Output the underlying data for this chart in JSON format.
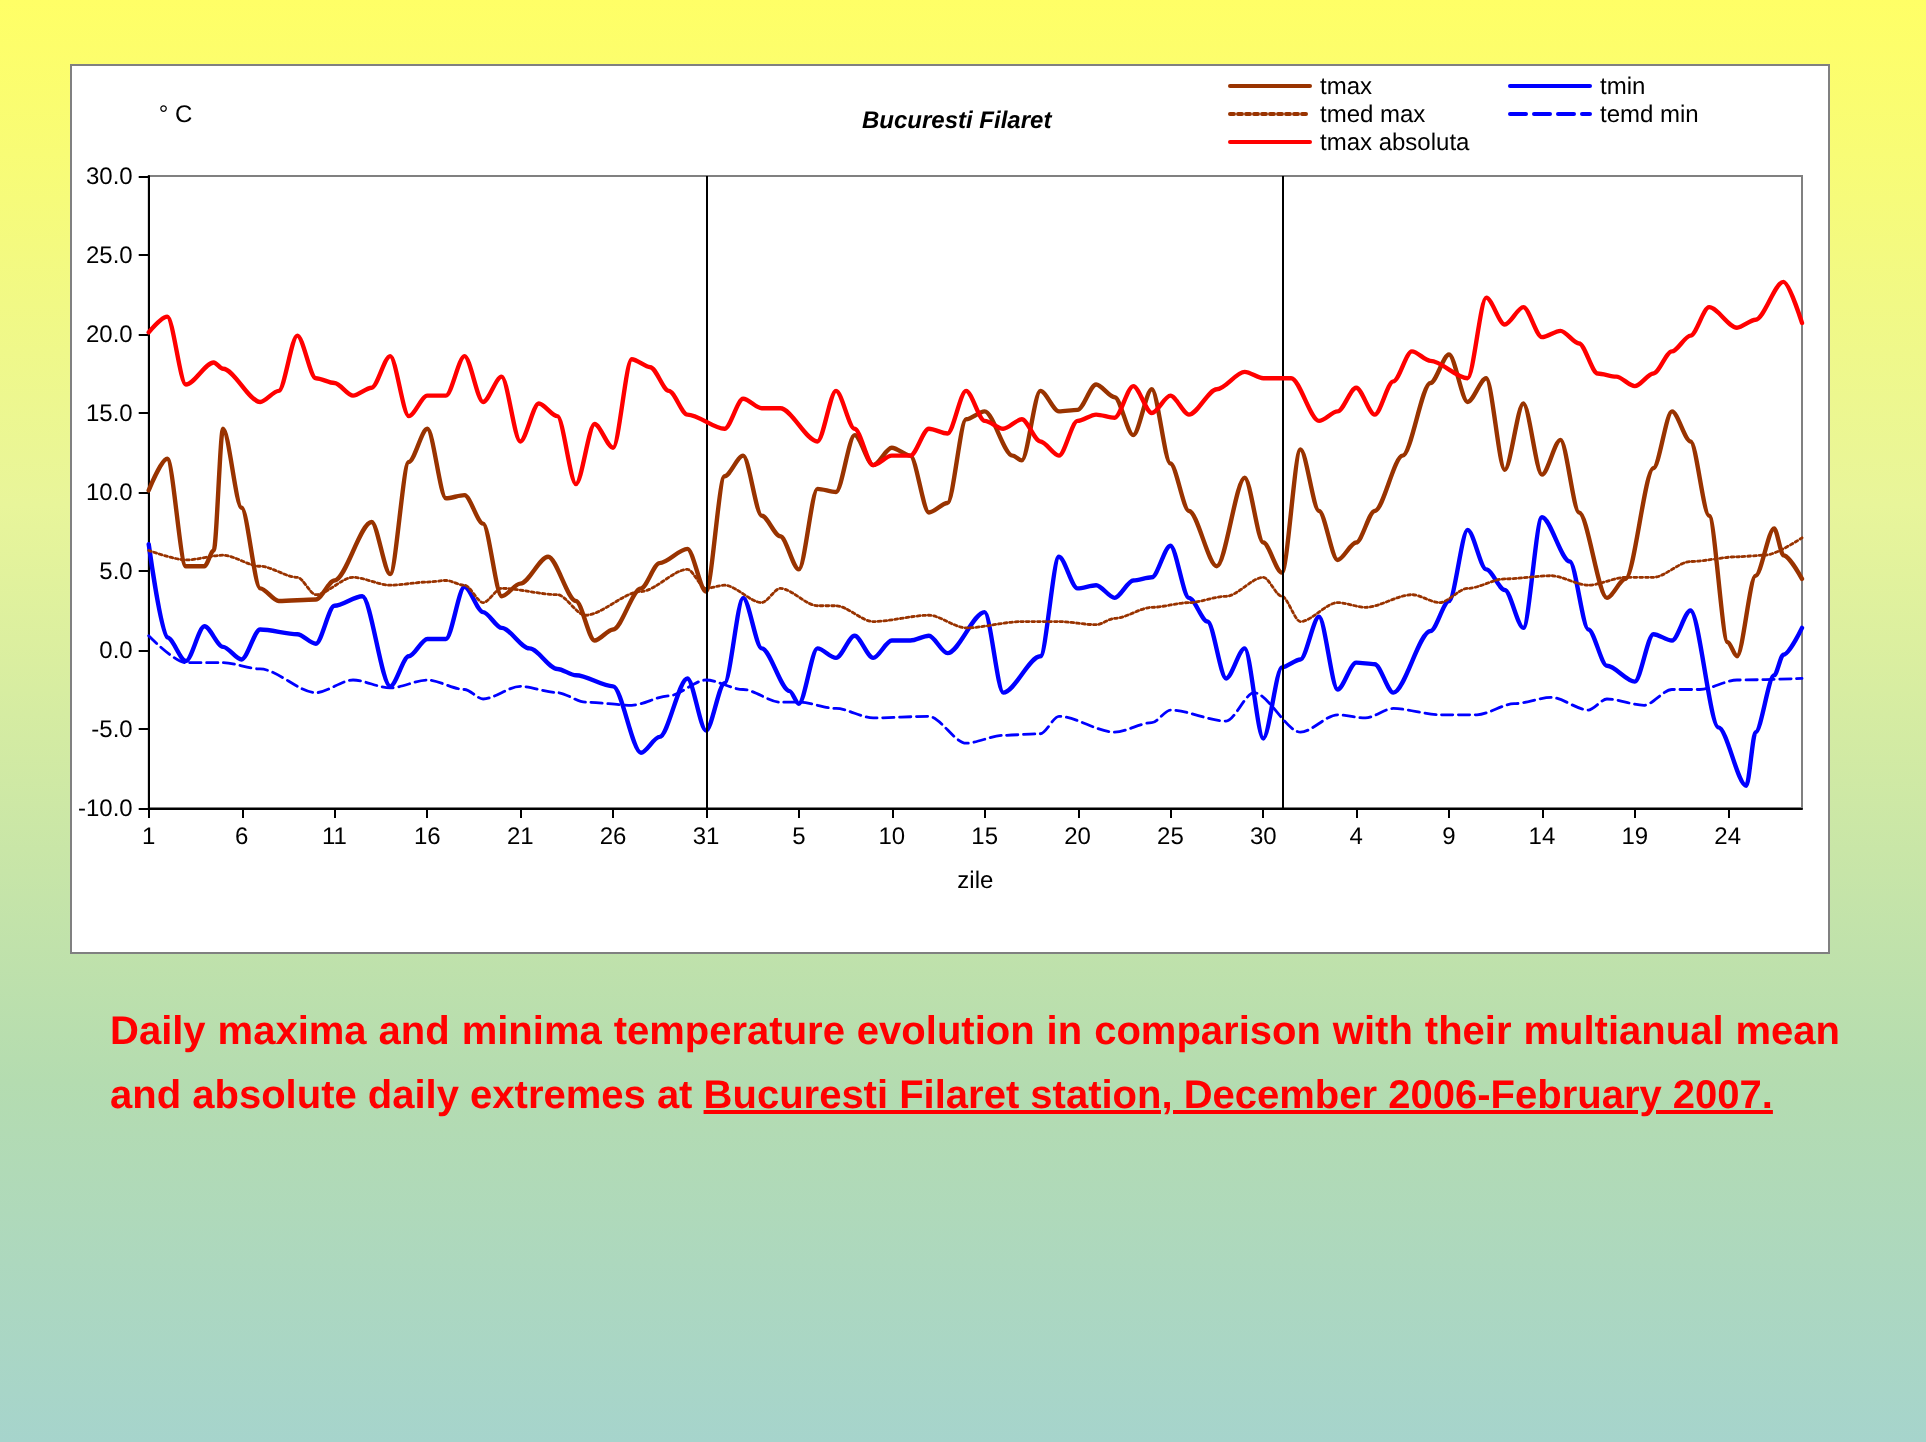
{
  "chart_data": {
    "type": "line",
    "title": "Bucuresti Filaret",
    "ylabel": "° C",
    "xlabel": "zile",
    "xlim": [
      "2006-12-01",
      "2007-02-28"
    ],
    "xticks": [
      {
        "value": "2006-12-01",
        "label": "1"
      },
      {
        "value": "2006-12-06",
        "label": "6"
      },
      {
        "value": "2006-12-11",
        "label": "11"
      },
      {
        "value": "2006-12-16",
        "label": "16"
      },
      {
        "value": "2006-12-21",
        "label": "21"
      },
      {
        "value": "2006-12-26",
        "label": "26"
      },
      {
        "value": "2006-12-31",
        "label": "31"
      },
      {
        "value": "2007-01-05",
        "label": "5"
      },
      {
        "value": "2007-01-10",
        "label": "10"
      },
      {
        "value": "2007-01-15",
        "label": "15"
      },
      {
        "value": "2007-01-20",
        "label": "20"
      },
      {
        "value": "2007-01-25",
        "label": "25"
      },
      {
        "value": "2007-01-30",
        "label": "30"
      },
      {
        "value": "2007-02-04",
        "label": "4"
      },
      {
        "value": "2007-02-09",
        "label": "9"
      },
      {
        "value": "2007-02-14",
        "label": "14"
      },
      {
        "value": "2007-02-19",
        "label": "19"
      },
      {
        "value": "2007-02-24",
        "label": "24"
      }
    ],
    "ylim": [
      -10,
      30
    ],
    "yticks": [
      {
        "value": -10,
        "label": "-10.0"
      },
      {
        "value": -5,
        "label": "-5.0"
      },
      {
        "value": 0,
        "label": "0.0"
      },
      {
        "value": 5,
        "label": "5.0"
      },
      {
        "value": 10,
        "label": "10.0"
      },
      {
        "value": 15,
        "label": "15.0"
      },
      {
        "value": 20,
        "label": "20.0"
      },
      {
        "value": 25,
        "label": "25.0"
      },
      {
        "value": 30,
        "label": "30.0"
      }
    ],
    "grid": false,
    "legend": "top right",
    "marker": "none",
    "ref_lines": [
      {
        "axis": "x",
        "value": "2006-12-31",
        "color": "#000000"
      },
      {
        "axis": "x",
        "value": "2007-01-31",
        "color": "#000000"
      }
    ],
    "annotations": [
      "Daily maxima and minima temperature evolution  in comparison with their multianual mean and absolute daily extremes at ",
      "Bucuresti Filaret station, December 2006-February 2007."
    ],
    "series": [
      {
        "name": "tmax",
        "color": "#993300",
        "line_style": "solid",
        "x": [
          "2006-12-01",
          "2006-12-02",
          "2006-12-03",
          "2006-12-04",
          "2006-12-04T12:00",
          "2006-12-05",
          "2006-12-06",
          "2006-12-07",
          "2006-12-08",
          "2006-12-10",
          "2006-12-11",
          "2006-12-13",
          "2006-12-14",
          "2006-12-15",
          "2006-12-16",
          "2006-12-17",
          "2006-12-18",
          "2006-12-19",
          "2006-12-20",
          "2006-12-21",
          "2006-12-22T12:00",
          "2006-12-24",
          "2006-12-25",
          "2006-12-26",
          "2006-12-27T12:00",
          "2006-12-28T12:00",
          "2006-12-30",
          "2006-12-31",
          "2007-01-01",
          "2007-01-02",
          "2007-01-03",
          "2007-01-04",
          "2007-01-05",
          "2007-01-06",
          "2007-01-07",
          "2007-01-08",
          "2007-01-09",
          "2007-01-10",
          "2007-01-11",
          "2007-01-12",
          "2007-01-13",
          "2007-01-14",
          "2007-01-15",
          "2007-01-16T12:00",
          "2007-01-17",
          "2007-01-18",
          "2007-01-19",
          "2007-01-20",
          "2007-01-21",
          "2007-01-22",
          "2007-01-23",
          "2007-01-24",
          "2007-01-25",
          "2007-01-26",
          "2007-01-27T12:00",
          "2007-01-29",
          "2007-01-30",
          "2007-01-31",
          "2007-02-01",
          "2007-02-02",
          "2007-02-03",
          "2007-02-04",
          "2007-02-05",
          "2007-02-06T12:00",
          "2007-02-08",
          "2007-02-09",
          "2007-02-10",
          "2007-02-11",
          "2007-02-12",
          "2007-02-13",
          "2007-02-14",
          "2007-02-15",
          "2007-02-16",
          "2007-02-17T12:00",
          "2007-02-18T12:00",
          "2007-02-20",
          "2007-02-21",
          "2007-02-22",
          "2007-02-23",
          "2007-02-24",
          "2007-02-24T12:00",
          "2007-02-25T12:00",
          "2007-02-26T12:00",
          "2007-02-27",
          "2007-02-28"
        ],
        "values": [
          10.1,
          12.1,
          5.3,
          5.3,
          6.3,
          14.0,
          9.0,
          3.9,
          3.1,
          3.2,
          4.4,
          8.1,
          4.8,
          11.9,
          14.0,
          9.6,
          9.8,
          8.0,
          3.4,
          4.2,
          5.9,
          3.1,
          0.6,
          1.3,
          3.9,
          5.5,
          6.4,
          3.7,
          11.0,
          12.3,
          8.5,
          7.2,
          5.1,
          10.2,
          10.0,
          13.6,
          11.7,
          12.8,
          12.3,
          8.7,
          9.3,
          14.6,
          15.1,
          12.3,
          12.0,
          16.4,
          15.1,
          15.2,
          16.8,
          16.0,
          13.6,
          16.5,
          11.8,
          8.8,
          5.3,
          10.9,
          6.8,
          4.9,
          12.7,
          8.8,
          5.7,
          6.8,
          8.8,
          12.3,
          16.9,
          18.7,
          15.7,
          17.2,
          11.4,
          15.6,
          11.1,
          13.3,
          8.7,
          3.3,
          4.5,
          11.5,
          15.1,
          13.2,
          8.5,
          0.5,
          -0.4,
          4.7,
          7.7,
          6.0,
          4.5
        ]
      },
      {
        "name": "tmin",
        "color": "#0000ff",
        "line_style": "solid",
        "x": [
          "2006-12-01",
          "2006-12-02",
          "2006-12-03",
          "2006-12-04",
          "2006-12-05",
          "2006-12-06",
          "2006-12-07",
          "2006-12-09",
          "2006-12-10",
          "2006-12-11",
          "2006-12-12T12:00",
          "2006-12-14",
          "2006-12-15",
          "2006-12-16",
          "2006-12-17",
          "2006-12-18",
          "2006-12-19",
          "2006-12-20",
          "2006-12-21T12:00",
          "2006-12-23",
          "2006-12-24",
          "2006-12-26",
          "2006-12-27T12:00",
          "2006-12-28T12:00",
          "2006-12-30",
          "2006-12-31",
          "2007-01-01",
          "2007-01-02",
          "2007-01-03",
          "2007-01-04T12:00",
          "2007-01-05",
          "2007-01-06",
          "2007-01-07",
          "2007-01-08",
          "2007-01-09",
          "2007-01-10",
          "2007-01-11",
          "2007-01-12",
          "2007-01-13",
          "2007-01-15",
          "2007-01-16",
          "2007-01-18",
          "2007-01-19",
          "2007-01-20",
          "2007-01-21",
          "2007-01-22",
          "2007-01-23",
          "2007-01-24",
          "2007-01-25",
          "2007-01-26",
          "2007-01-27",
          "2007-01-28",
          "2007-01-29",
          "2007-01-30",
          "2007-01-31",
          "2007-02-01",
          "2007-02-02",
          "2007-02-03",
          "2007-02-04",
          "2007-02-05",
          "2007-02-06",
          "2007-02-08",
          "2007-02-09",
          "2007-02-10",
          "2007-02-11",
          "2007-02-12",
          "2007-02-13",
          "2007-02-14",
          "2007-02-15T12:00",
          "2007-02-16T12:00",
          "2007-02-17T12:00",
          "2007-02-19",
          "2007-02-20",
          "2007-02-21",
          "2007-02-22",
          "2007-02-23T12:00",
          "2007-02-25",
          "2007-02-25T12:00",
          "2007-02-26T12:00",
          "2007-02-27",
          "2007-02-28"
        ],
        "values": [
          6.7,
          0.8,
          -0.7,
          1.5,
          0.2,
          -0.6,
          1.3,
          1.0,
          0.4,
          2.8,
          3.4,
          -2.3,
          -0.4,
          0.7,
          0.7,
          4.0,
          2.4,
          1.4,
          0.1,
          -1.2,
          -1.6,
          -2.3,
          -6.5,
          -5.5,
          -1.8,
          -5.1,
          -2.1,
          3.3,
          0.1,
          -2.6,
          -3.4,
          0.1,
          -0.5,
          0.9,
          -0.5,
          0.6,
          0.6,
          0.9,
          -0.2,
          2.4,
          -2.7,
          -0.4,
          5.9,
          3.9,
          4.1,
          3.3,
          4.4,
          4.6,
          6.6,
          3.3,
          1.8,
          -1.8,
          0.1,
          -5.6,
          -1.1,
          -0.6,
          2.1,
          -2.5,
          -0.8,
          -0.9,
          -2.7,
          1.2,
          3.1,
          7.6,
          5.1,
          3.8,
          1.4,
          8.4,
          5.6,
          1.3,
          -1.0,
          -2.0,
          1.0,
          0.6,
          2.5,
          -4.9,
          -8.6,
          -5.2,
          -1.6,
          -0.3,
          1.4
        ]
      },
      {
        "name": "tmed max",
        "color": "#993300",
        "line_style": "dotted",
        "x": [
          "2006-12-01",
          "2006-12-03",
          "2006-12-05",
          "2006-12-07",
          "2006-12-09",
          "2006-12-10",
          "2006-12-12",
          "2006-12-14",
          "2006-12-16",
          "2006-12-17",
          "2006-12-18",
          "2006-12-19",
          "2006-12-20",
          "2006-12-23",
          "2006-12-24T12:00",
          "2006-12-27T12:00",
          "2006-12-30",
          "2006-12-31",
          "2007-01-01",
          "2007-01-03",
          "2007-01-04",
          "2007-01-06",
          "2007-01-07",
          "2007-01-09",
          "2007-01-12",
          "2007-01-14",
          "2007-01-17",
          "2007-01-19",
          "2007-01-21",
          "2007-01-22",
          "2007-01-24",
          "2007-01-26",
          "2007-01-28",
          "2007-01-30",
          "2007-01-31",
          "2007-02-01",
          "2007-02-03",
          "2007-02-04T12:00",
          "2007-02-07",
          "2007-02-08T12:00",
          "2007-02-10",
          "2007-02-12",
          "2007-02-14T12:00",
          "2007-02-16T12:00",
          "2007-02-18T12:00",
          "2007-02-20",
          "2007-02-22",
          "2007-02-24T12:00",
          "2007-02-26",
          "2007-02-28"
        ],
        "values": [
          6.3,
          5.7,
          6.0,
          5.3,
          4.6,
          3.5,
          4.6,
          4.1,
          4.3,
          4.4,
          4.1,
          3.0,
          3.9,
          3.5,
          2.2,
          3.7,
          5.1,
          3.9,
          4.1,
          3.0,
          3.9,
          2.8,
          2.8,
          1.8,
          2.2,
          1.4,
          1.8,
          1.8,
          1.6,
          2.0,
          2.7,
          3.0,
          3.4,
          4.6,
          3.4,
          1.8,
          3.0,
          2.7,
          3.5,
          3.0,
          3.9,
          4.5,
          4.7,
          4.1,
          4.6,
          4.6,
          5.6,
          5.9,
          6.0,
          7.1
        ]
      },
      {
        "name": "temd min",
        "color": "#0000ff",
        "line_style": "dashed",
        "x": [
          "2006-12-01",
          "2006-12-03",
          "2006-12-05",
          "2006-12-07",
          "2006-12-10",
          "2006-12-12",
          "2006-12-14",
          "2006-12-16",
          "2006-12-18",
          "2006-12-19",
          "2006-12-21",
          "2006-12-23",
          "2006-12-24T12:00",
          "2006-12-27",
          "2006-12-29",
          "2006-12-31",
          "2007-01-02",
          "2007-01-04",
          "2007-01-05",
          "2007-01-07",
          "2007-01-09",
          "2007-01-12",
          "2007-01-14",
          "2007-01-16",
          "2007-01-18",
          "2007-01-19",
          "2007-01-22",
          "2007-01-24",
          "2007-01-25",
          "2007-01-28",
          "2007-01-29T12:00",
          "2007-02-01",
          "2007-02-03",
          "2007-02-04T12:00",
          "2007-02-06",
          "2007-02-08T12:00",
          "2007-02-10T12:00",
          "2007-02-12T12:00",
          "2007-02-14T12:00",
          "2007-02-16T12:00",
          "2007-02-17T12:00",
          "2007-02-19T12:00",
          "2007-02-21",
          "2007-02-22T12:00",
          "2007-02-24T12:00",
          "2007-02-28"
        ],
        "values": [
          0.9,
          -0.8,
          -0.8,
          -1.2,
          -2.7,
          -1.9,
          -2.4,
          -1.9,
          -2.5,
          -3.1,
          -2.3,
          -2.7,
          -3.3,
          -3.5,
          -2.9,
          -1.9,
          -2.5,
          -3.3,
          -3.3,
          -3.7,
          -4.3,
          -4.2,
          -5.9,
          -5.4,
          -5.3,
          -4.2,
          -5.2,
          -4.6,
          -3.8,
          -4.5,
          -2.7,
          -5.2,
          -4.1,
          -4.3,
          -3.7,
          -4.1,
          -4.1,
          -3.4,
          -3.0,
          -3.8,
          -3.1,
          -3.5,
          -2.5,
          -2.5,
          -1.9,
          -1.8
        ]
      },
      {
        "name": "tmax absoluta",
        "color": "#ff0000",
        "line_style": "solid",
        "x": [
          "2006-12-01",
          "2006-12-02",
          "2006-12-03",
          "2006-12-04T12:00",
          "2006-12-05",
          "2006-12-07",
          "2006-12-08",
          "2006-12-09",
          "2006-12-10",
          "2006-12-11",
          "2006-12-12",
          "2006-12-13",
          "2006-12-14",
          "2006-12-15",
          "2006-12-16",
          "2006-12-17",
          "2006-12-18",
          "2006-12-19",
          "2006-12-20",
          "2006-12-21",
          "2006-12-22",
          "2006-12-23",
          "2006-12-24",
          "2006-12-25",
          "2006-12-26",
          "2006-12-27",
          "2006-12-28",
          "2006-12-29",
          "2006-12-30",
          "2007-01-01",
          "2007-01-02",
          "2007-01-03",
          "2007-01-04",
          "2007-01-06",
          "2007-01-07",
          "2007-01-08",
          "2007-01-09",
          "2007-01-10",
          "2007-01-11",
          "2007-01-12",
          "2007-01-13",
          "2007-01-14",
          "2007-01-15",
          "2007-01-16",
          "2007-01-17",
          "2007-01-18",
          "2007-01-19",
          "2007-01-20",
          "2007-01-21",
          "2007-01-22",
          "2007-01-23",
          "2007-01-24",
          "2007-01-25",
          "2007-01-26",
          "2007-01-27T12:00",
          "2007-01-29",
          "2007-01-30",
          "2007-01-31T12:00",
          "2007-02-02",
          "2007-02-03",
          "2007-02-04",
          "2007-02-05",
          "2007-02-06",
          "2007-02-07",
          "2007-02-08",
          "2007-02-10",
          "2007-02-11",
          "2007-02-12",
          "2007-02-13",
          "2007-02-14",
          "2007-02-15",
          "2007-02-16",
          "2007-02-17",
          "2007-02-18",
          "2007-02-19",
          "2007-02-20",
          "2007-02-21",
          "2007-02-22",
          "2007-02-23",
          "2007-02-24T12:00",
          "2007-02-25T12:00",
          "2007-02-27",
          "2007-02-28"
        ],
        "values": [
          20.1,
          21.1,
          16.8,
          18.2,
          17.8,
          15.7,
          16.4,
          19.9,
          17.2,
          16.9,
          16.1,
          16.6,
          18.6,
          14.8,
          16.1,
          16.1,
          18.6,
          15.7,
          17.3,
          13.2,
          15.6,
          14.8,
          10.5,
          14.3,
          12.8,
          18.4,
          17.9,
          16.4,
          14.9,
          14.0,
          15.9,
          15.3,
          15.3,
          13.2,
          16.4,
          14.0,
          11.7,
          12.3,
          12.3,
          14.0,
          13.7,
          16.4,
          14.5,
          14.0,
          14.6,
          13.2,
          12.3,
          14.5,
          14.9,
          14.7,
          16.7,
          15.0,
          16.1,
          14.9,
          16.5,
          17.6,
          17.2,
          17.2,
          14.5,
          15.1,
          16.6,
          14.9,
          17.0,
          18.9,
          18.3,
          17.2,
          22.3,
          20.6,
          21.7,
          19.8,
          20.2,
          19.4,
          17.5,
          17.3,
          16.7,
          17.5,
          18.9,
          19.9,
          21.7,
          20.4,
          20.9,
          23.3,
          20.7
        ]
      }
    ]
  }
}
